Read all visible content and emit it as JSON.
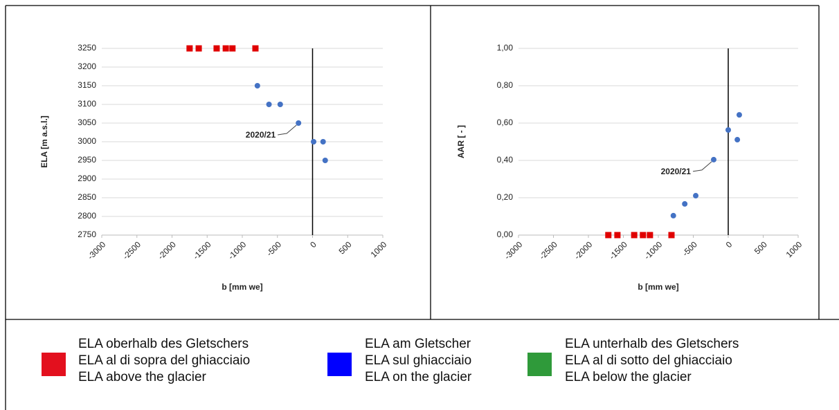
{
  "chart_data": [
    {
      "type": "scatter",
      "ylabel": "ELA [m a.s.l.]",
      "xlabel": "b [mm we]",
      "xlim": [
        -3000,
        1000
      ],
      "xticks": [
        -3000,
        -2500,
        -2000,
        -1500,
        -1000,
        -500,
        0,
        500,
        1000
      ],
      "ylim": [
        2750,
        3250
      ],
      "yticks": [
        2750,
        2800,
        2850,
        2900,
        2950,
        3000,
        3050,
        3100,
        3150,
        3200,
        3250
      ],
      "grid": true,
      "reference_line_x": 0,
      "series": [
        {
          "color": "#e00000",
          "marker": "square",
          "x": [
            -1750,
            -1620,
            -1365,
            -1235,
            -1140,
            -813
          ],
          "values": [
            3250,
            3250,
            3250,
            3250,
            3250,
            3250
          ]
        },
        {
          "color": "#4472c4",
          "marker": "circle",
          "x": [
            -785,
            -620,
            -460,
            -200,
            15,
            150,
            180
          ],
          "values": [
            3150,
            3100,
            3100,
            3050,
            3000,
            3000,
            2950
          ]
        }
      ],
      "annotations": [
        {
          "text": "2020/21",
          "x": -200,
          "y": 3050
        }
      ]
    },
    {
      "type": "scatter",
      "ylabel": "AAR [ - ]",
      "xlabel": "b [mm we]",
      "xlim": [
        -3000,
        1000
      ],
      "xticks": [
        -3000,
        -2500,
        -2000,
        -1500,
        -1000,
        -500,
        0,
        500,
        1000
      ],
      "ylim": [
        0,
        1
      ],
      "yticks": [
        {
          "value": 0,
          "label": "0,00"
        },
        {
          "value": 0.2,
          "label": "0,20"
        },
        {
          "value": 0.4,
          "label": "0,40"
        },
        {
          "value": 0.6,
          "label": "0,60"
        },
        {
          "value": 0.8,
          "label": "0,80"
        },
        {
          "value": 1,
          "label": "1,00"
        }
      ],
      "grid": true,
      "reference_line_x": 0,
      "series": [
        {
          "color": "#e00000",
          "marker": "square",
          "x": [
            -1715,
            -1585,
            -1345,
            -1220,
            -1120,
            -812
          ],
          "values": [
            0,
            0,
            0,
            0,
            0,
            0
          ]
        },
        {
          "color": "#4472c4",
          "marker": "circle",
          "x": [
            -785,
            -622,
            -465,
            -208,
            0,
            130,
            158
          ],
          "values": [
            0.104,
            0.167,
            0.211,
            0.404,
            0.563,
            0.511,
            0.644
          ]
        }
      ],
      "annotations": [
        {
          "text": "2020/21",
          "x": -208,
          "y": 0.404
        }
      ]
    }
  ],
  "legend": {
    "items": [
      {
        "color": "#e3101e",
        "lines": [
          "ELA oberhalb des Gletschers",
          "ELA al di sopra del ghiacciaio",
          "ELA above the glacier"
        ]
      },
      {
        "color": "#0000ff",
        "lines": [
          "ELA am Gletscher",
          "ELA sul ghiacciaio",
          "ELA on the glacier"
        ]
      },
      {
        "color": "#2f9a3a",
        "lines": [
          "ELA unterhalb des Gletschers",
          "ELA al di sotto del ghiacciaio",
          "ELA below the glacier"
        ]
      }
    ]
  }
}
